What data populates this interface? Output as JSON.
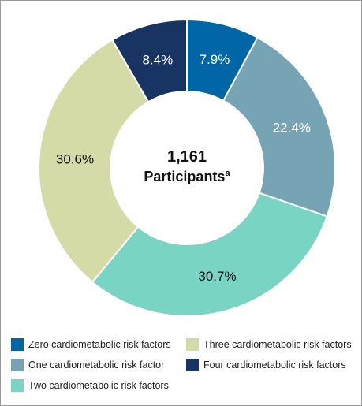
{
  "chart_data": {
    "type": "pie",
    "donut": true,
    "center_label": {
      "count": "1,161",
      "text": "Participants",
      "superscript": "a"
    },
    "slices": [
      {
        "label": "Zero cardiometabolic risk factors",
        "value": 7.9,
        "display": "7.9%",
        "color": "#0066a6",
        "text_color": "#ffffff"
      },
      {
        "label": "One cardiometabolic risk factor",
        "value": 22.4,
        "display": "22.4%",
        "color": "#76a4b4",
        "text_color": "#ffffff"
      },
      {
        "label": "Two cardiometabolic risk factors",
        "value": 30.7,
        "display": "30.7%",
        "color": "#7ad4c4",
        "text_color": "#111111"
      },
      {
        "label": "Three cardiometabolic risk factors",
        "value": 30.6,
        "display": "30.6%",
        "color": "#d5dba6",
        "text_color": "#111111"
      },
      {
        "label": "Four cardiometabolic risk factors",
        "value": 8.4,
        "display": "8.4%",
        "color": "#173463",
        "text_color": "#ffffff"
      }
    ],
    "legend": {
      "placement": "bottom",
      "columns": [
        [
          "Zero cardiometabolic risk factors",
          "One cardiometabolic risk factor",
          "Two cardiometabolic risk factors"
        ],
        [
          "Three cardiometabolic risk factors",
          "Four cardiometabolic risk factors"
        ]
      ]
    }
  }
}
